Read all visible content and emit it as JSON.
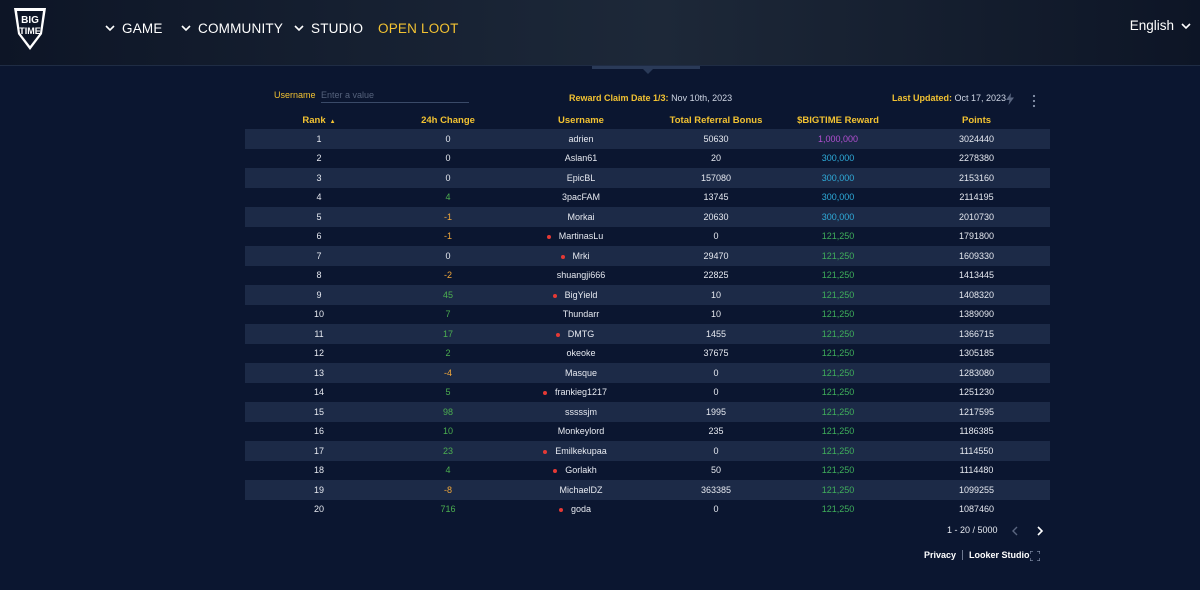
{
  "nav": {
    "items": [
      {
        "label": "GAME"
      },
      {
        "label": "COMMUNITY"
      },
      {
        "label": "STUDIO"
      },
      {
        "label": "OPEN LOOT"
      }
    ],
    "language": "English",
    "logo_icon": "big-time-logo"
  },
  "filters": {
    "username_label": "Username",
    "username_placeholder": "Enter a value"
  },
  "info": {
    "claim_label": "Reward Claim Date 1/3:",
    "claim_value": "Nov 10th, 2023",
    "updated_label": "Last Updated:",
    "updated_value": "Oct 17, 2023"
  },
  "table": {
    "headers": [
      "Rank",
      "24h Change",
      "Username",
      "Total Referral Bonus",
      "$BIGTIME Reward",
      "Points"
    ],
    "rows": [
      {
        "rank": "1",
        "change": "0",
        "username": "adrien",
        "bonus": "50630",
        "reward": "1,000,000",
        "points": "3024440",
        "dot": false
      },
      {
        "rank": "2",
        "change": "0",
        "username": "Aslan61",
        "bonus": "20",
        "reward": "300,000",
        "points": "2278380",
        "dot": false
      },
      {
        "rank": "3",
        "change": "0",
        "username": "EpicBL",
        "bonus": "157080",
        "reward": "300,000",
        "points": "2153160",
        "dot": false
      },
      {
        "rank": "4",
        "change": "4",
        "username": "3pacFAM",
        "bonus": "13745",
        "reward": "300,000",
        "points": "2114195",
        "dot": false
      },
      {
        "rank": "5",
        "change": "-1",
        "username": "Morkai",
        "bonus": "20630",
        "reward": "300,000",
        "points": "2010730",
        "dot": false
      },
      {
        "rank": "6",
        "change": "-1",
        "username": "MartinasLu",
        "bonus": "0",
        "reward": "121,250",
        "points": "1791800",
        "dot": true
      },
      {
        "rank": "7",
        "change": "0",
        "username": "Mrki",
        "bonus": "29470",
        "reward": "121,250",
        "points": "1609330",
        "dot": true
      },
      {
        "rank": "8",
        "change": "-2",
        "username": "shuangji666",
        "bonus": "22825",
        "reward": "121,250",
        "points": "1413445",
        "dot": false
      },
      {
        "rank": "9",
        "change": "45",
        "username": "BigYield",
        "bonus": "10",
        "reward": "121,250",
        "points": "1408320",
        "dot": true
      },
      {
        "rank": "10",
        "change": "7",
        "username": "Thundarr",
        "bonus": "10",
        "reward": "121,250",
        "points": "1389090",
        "dot": false
      },
      {
        "rank": "11",
        "change": "17",
        "username": "DMTG",
        "bonus": "1455",
        "reward": "121,250",
        "points": "1366715",
        "dot": true
      },
      {
        "rank": "12",
        "change": "2",
        "username": "okeoke",
        "bonus": "37675",
        "reward": "121,250",
        "points": "1305185",
        "dot": false
      },
      {
        "rank": "13",
        "change": "-4",
        "username": "Masque",
        "bonus": "0",
        "reward": "121,250",
        "points": "1283080",
        "dot": false
      },
      {
        "rank": "14",
        "change": "5",
        "username": "frankieg1217",
        "bonus": "0",
        "reward": "121,250",
        "points": "1251230",
        "dot": true
      },
      {
        "rank": "15",
        "change": "98",
        "username": "sssssjm",
        "bonus": "1995",
        "reward": "121,250",
        "points": "1217595",
        "dot": false
      },
      {
        "rank": "16",
        "change": "10",
        "username": "Monkeylord",
        "bonus": "235",
        "reward": "121,250",
        "points": "1186385",
        "dot": false
      },
      {
        "rank": "17",
        "change": "23",
        "username": "Emilkekupaa",
        "bonus": "0",
        "reward": "121,250",
        "points": "1114550",
        "dot": true
      },
      {
        "rank": "18",
        "change": "4",
        "username": "Gorlakh",
        "bonus": "50",
        "reward": "121,250",
        "points": "1114480",
        "dot": true
      },
      {
        "rank": "19",
        "change": "-8",
        "username": "MichaelDZ",
        "bonus": "363385",
        "reward": "121,250",
        "points": "1099255",
        "dot": false
      },
      {
        "rank": "20",
        "change": "716",
        "username": "goda",
        "bonus": "0",
        "reward": "121,250",
        "points": "1087460",
        "dot": true
      }
    ]
  },
  "pagination": {
    "label": "1 - 20 / 5000"
  },
  "footer": {
    "privacy": "Privacy",
    "looker": "Looker Studio"
  },
  "colors": {
    "accent_gold": "#f2c232",
    "positive": "#4caf50",
    "negative": "#f2a83a",
    "reward_top": "#b24fd1",
    "reward_tier2": "#2eaad8",
    "reward_tier3": "#3fae5b",
    "status_dot": "#e53935"
  }
}
